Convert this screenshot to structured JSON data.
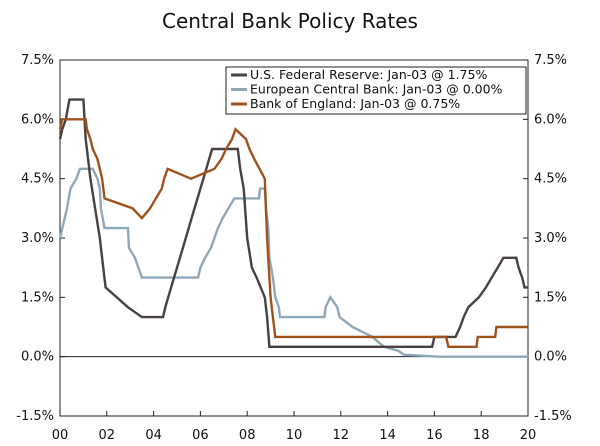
{
  "chart_data": {
    "type": "line",
    "title": "Central Bank Policy Rates",
    "xlabel": "",
    "ylabel": "",
    "x_ticks": [
      "00",
      "02",
      "04",
      "06",
      "08",
      "10",
      "12",
      "14",
      "16",
      "18",
      "20"
    ],
    "x_range": [
      2000,
      2020
    ],
    "y_ticks_left": [
      "7.5%",
      "6.0%",
      "4.5%",
      "3.0%",
      "1.5%",
      "0.0%",
      "-1.5%"
    ],
    "y_ticks_right": [
      "7.5%",
      "6.0%",
      "4.5%",
      "3.0%",
      "1.5%",
      "0.0%",
      "-1.5%"
    ],
    "y_range": [
      -1.5,
      7.5
    ],
    "grid": false,
    "legend_position": "top-right",
    "series": [
      {
        "name": "U.S. Federal Reserve: Jan-03 @ 1.75%",
        "color": "#4a4040",
        "points": [
          [
            2000.0,
            5.5
          ],
          [
            2000.1,
            5.75
          ],
          [
            2000.25,
            6.0
          ],
          [
            2000.4,
            6.5
          ],
          [
            2001.0,
            6.5
          ],
          [
            2001.1,
            5.5
          ],
          [
            2001.3,
            4.5
          ],
          [
            2001.5,
            3.75
          ],
          [
            2001.7,
            3.0
          ],
          [
            2001.8,
            2.5
          ],
          [
            2001.95,
            1.75
          ],
          [
            2002.9,
            1.25
          ],
          [
            2003.5,
            1.0
          ],
          [
            2004.4,
            1.0
          ],
          [
            2004.5,
            1.25
          ],
          [
            2004.75,
            1.75
          ],
          [
            2005.0,
            2.25
          ],
          [
            2005.25,
            2.75
          ],
          [
            2005.5,
            3.25
          ],
          [
            2005.75,
            3.75
          ],
          [
            2006.0,
            4.25
          ],
          [
            2006.25,
            4.75
          ],
          [
            2006.5,
            5.25
          ],
          [
            2007.6,
            5.25
          ],
          [
            2007.7,
            4.75
          ],
          [
            2007.85,
            4.25
          ],
          [
            2008.0,
            3.0
          ],
          [
            2008.2,
            2.25
          ],
          [
            2008.4,
            2.0
          ],
          [
            2008.75,
            1.5
          ],
          [
            2008.85,
            1.0
          ],
          [
            2008.95,
            0.25
          ],
          [
            2015.9,
            0.25
          ],
          [
            2016.0,
            0.5
          ],
          [
            2016.9,
            0.5
          ],
          [
            2017.1,
            0.75
          ],
          [
            2017.25,
            1.0
          ],
          [
            2017.45,
            1.25
          ],
          [
            2017.9,
            1.5
          ],
          [
            2018.2,
            1.75
          ],
          [
            2018.45,
            2.0
          ],
          [
            2018.7,
            2.25
          ],
          [
            2018.95,
            2.5
          ],
          [
            2019.5,
            2.5
          ],
          [
            2019.6,
            2.25
          ],
          [
            2019.75,
            2.0
          ],
          [
            2019.85,
            1.75
          ],
          [
            2020.0,
            1.75
          ]
        ]
      },
      {
        "name": "European Central Bank: Jan-03 @ 0.00%",
        "color": "#8fa8b8",
        "points": [
          [
            2000.0,
            3.0
          ],
          [
            2000.1,
            3.25
          ],
          [
            2000.2,
            3.5
          ],
          [
            2000.3,
            3.75
          ],
          [
            2000.45,
            4.25
          ],
          [
            2000.7,
            4.5
          ],
          [
            2000.85,
            4.75
          ],
          [
            2001.4,
            4.75
          ],
          [
            2001.6,
            4.5
          ],
          [
            2001.7,
            4.25
          ],
          [
            2001.75,
            3.75
          ],
          [
            2001.9,
            3.25
          ],
          [
            2002.9,
            3.25
          ],
          [
            2002.95,
            2.75
          ],
          [
            2003.2,
            2.5
          ],
          [
            2003.5,
            2.0
          ],
          [
            2005.9,
            2.0
          ],
          [
            2006.0,
            2.25
          ],
          [
            2006.2,
            2.5
          ],
          [
            2006.45,
            2.75
          ],
          [
            2006.6,
            3.0
          ],
          [
            2006.75,
            3.25
          ],
          [
            2006.95,
            3.5
          ],
          [
            2007.2,
            3.75
          ],
          [
            2007.45,
            4.0
          ],
          [
            2008.5,
            4.0
          ],
          [
            2008.55,
            4.25
          ],
          [
            2008.75,
            4.25
          ],
          [
            2008.8,
            3.75
          ],
          [
            2008.9,
            3.25
          ],
          [
            2008.95,
            2.5
          ],
          [
            2009.1,
            2.0
          ],
          [
            2009.2,
            1.5
          ],
          [
            2009.35,
            1.25
          ],
          [
            2009.4,
            1.0
          ],
          [
            2011.3,
            1.0
          ],
          [
            2011.35,
            1.25
          ],
          [
            2011.55,
            1.5
          ],
          [
            2011.85,
            1.25
          ],
          [
            2011.95,
            1.0
          ],
          [
            2012.5,
            0.75
          ],
          [
            2013.35,
            0.5
          ],
          [
            2013.85,
            0.25
          ],
          [
            2014.45,
            0.15
          ],
          [
            2014.7,
            0.05
          ],
          [
            2016.2,
            0.0
          ],
          [
            2020.0,
            0.0
          ]
        ]
      },
      {
        "name": "Bank of England: Jan-03 @ 0.75%",
        "color": "#a0521c",
        "points": [
          [
            2000.0,
            5.75
          ],
          [
            2000.1,
            6.0
          ],
          [
            2001.1,
            6.0
          ],
          [
            2001.15,
            5.75
          ],
          [
            2001.3,
            5.5
          ],
          [
            2001.4,
            5.25
          ],
          [
            2001.6,
            5.0
          ],
          [
            2001.7,
            4.75
          ],
          [
            2001.8,
            4.5
          ],
          [
            2001.9,
            4.0
          ],
          [
            2003.1,
            3.75
          ],
          [
            2003.5,
            3.5
          ],
          [
            2003.85,
            3.75
          ],
          [
            2004.1,
            4.0
          ],
          [
            2004.35,
            4.25
          ],
          [
            2004.45,
            4.5
          ],
          [
            2004.6,
            4.75
          ],
          [
            2005.6,
            4.5
          ],
          [
            2006.6,
            4.75
          ],
          [
            2006.9,
            5.0
          ],
          [
            2007.1,
            5.25
          ],
          [
            2007.35,
            5.5
          ],
          [
            2007.5,
            5.75
          ],
          [
            2007.95,
            5.5
          ],
          [
            2008.1,
            5.25
          ],
          [
            2008.3,
            5.0
          ],
          [
            2008.75,
            4.5
          ],
          [
            2008.85,
            3.0
          ],
          [
            2008.95,
            2.0
          ],
          [
            2009.0,
            1.5
          ],
          [
            2009.1,
            1.0
          ],
          [
            2009.2,
            0.5
          ],
          [
            2016.5,
            0.5
          ],
          [
            2016.6,
            0.25
          ],
          [
            2017.8,
            0.25
          ],
          [
            2017.85,
            0.5
          ],
          [
            2018.6,
            0.5
          ],
          [
            2018.65,
            0.75
          ],
          [
            2020.0,
            0.75
          ]
        ]
      }
    ]
  }
}
